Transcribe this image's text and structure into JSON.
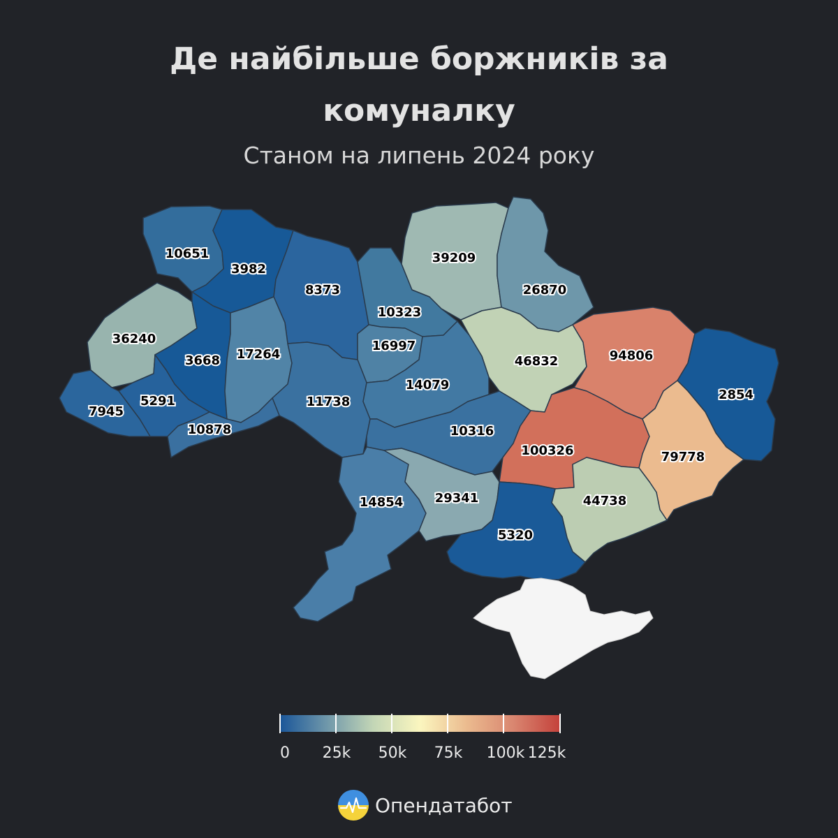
{
  "title_line1": "Де найбільше боржників за",
  "title_line2": "комуналку",
  "subtitle": "Станом на липень 2024 року",
  "regions": [
    {
      "name": "Volyn",
      "value": 10651,
      "color": "#336d9c"
    },
    {
      "name": "Rivne",
      "value": 3982,
      "color": "#175997"
    },
    {
      "name": "Kyiv",
      "value": 8373,
      "color": "#2b659e"
    },
    {
      "name": "Chernihiv",
      "value": 10323,
      "color": "#41799f"
    },
    {
      "name": "Sumy",
      "value": 39209,
      "color": "#9fb9b2"
    },
    {
      "name": "Kharkiv",
      "value": 26870,
      "color": "#6e97aa"
    },
    {
      "name": "Lviv",
      "value": 36240,
      "color": "#98b4ae"
    },
    {
      "name": "Ternopil",
      "value": 3668,
      "color": "#175997"
    },
    {
      "name": "Khmelnytskyi",
      "value": 17264,
      "color": "#5184a7"
    },
    {
      "name": "Kyiv city",
      "value": 16997,
      "color": "#4f82a5"
    },
    {
      "name": "Poltava",
      "value": 46832,
      "color": "#c1d2b5"
    },
    {
      "name": "Luhansk",
      "value": 94806,
      "color": "#d9826b"
    },
    {
      "name": "Luhansk East",
      "value": 2854,
      "color": "#175997"
    },
    {
      "name": "Ivano-Frankivsk",
      "value": 5291,
      "color": "#26629c"
    },
    {
      "name": "Zakarpattia",
      "value": 7945,
      "color": "#2b669d"
    },
    {
      "name": "Vinnytsia",
      "value": 11738,
      "color": "#3a71a0"
    },
    {
      "name": "Cherkasy",
      "value": 14079,
      "color": "#4279a3"
    },
    {
      "name": "Chernivtsi",
      "value": 10878,
      "color": "#3a70a0"
    },
    {
      "name": "Kirovohrad",
      "value": 10316,
      "color": "#3a71a0"
    },
    {
      "name": "Dnipropetrovsk",
      "value": 100326,
      "color": "#d2705b"
    },
    {
      "name": "Donetsk",
      "value": 79778,
      "color": "#ebbb8f"
    },
    {
      "name": "Odesa",
      "value": 14854,
      "color": "#4a7ea8"
    },
    {
      "name": "Mykolaiv",
      "value": 29341,
      "color": "#8aa9b0"
    },
    {
      "name": "Zaporizhzhia",
      "value": 44738,
      "color": "#bccdb2"
    },
    {
      "name": "Kherson",
      "value": 5320,
      "color": "#1a5a98"
    }
  ],
  "legend": {
    "ticks": [
      "0",
      "25k",
      "50k",
      "75k",
      "100k",
      "125k"
    ],
    "colors": [
      "#1a5699",
      "#6f97aa",
      "#c3d6b6",
      "#fbf6bf",
      "#ebbb8f",
      "#d98670",
      "#c4413b"
    ]
  },
  "brand": "Опендатабот"
}
